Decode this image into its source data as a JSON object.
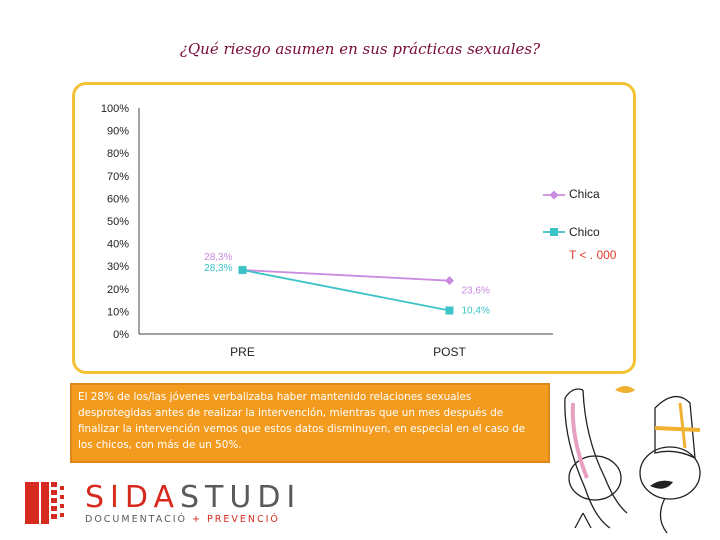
{
  "slide": {
    "title": "¿Qué riesgo asumen en sus prácticas sexuales?",
    "callout": "El 28% de los/las jóvenes verbalizaba haber mantenido relaciones sexuales desprotegidas antes de realizar la intervención, mientras que un mes después de finalizar la intervención vemos que estos datos disminuyen, en especial en el caso de los chicos, con más de un 50%.",
    "significance": "T < . 000",
    "logo": {
      "main_a": "SIDA",
      "main_b": "STUDI",
      "sub_a": "DOCUMENTACIÓ",
      "sub_plus": " + ",
      "sub_b": "PREVENCIÓ"
    }
  },
  "chart_data": {
    "type": "line",
    "categories": [
      "PRE",
      "POST"
    ],
    "y_ticks": [
      "0%",
      "10%",
      "20%",
      "30%",
      "40%",
      "50%",
      "60%",
      "70%",
      "80%",
      "90%",
      "100%"
    ],
    "ylim": [
      0,
      100
    ],
    "series": [
      {
        "name": "Chica",
        "values": [
          28.3,
          23.6
        ],
        "labels": [
          "28,3%",
          "23,6%"
        ],
        "color": "#c98be0",
        "marker": "diamond"
      },
      {
        "name": "Chico",
        "values": [
          28.3,
          10.4
        ],
        "labels": [
          "28,3%",
          "10,4%"
        ],
        "color": "#3cc3c8",
        "marker": "square"
      }
    ],
    "legend_position": "right",
    "grid": false
  }
}
